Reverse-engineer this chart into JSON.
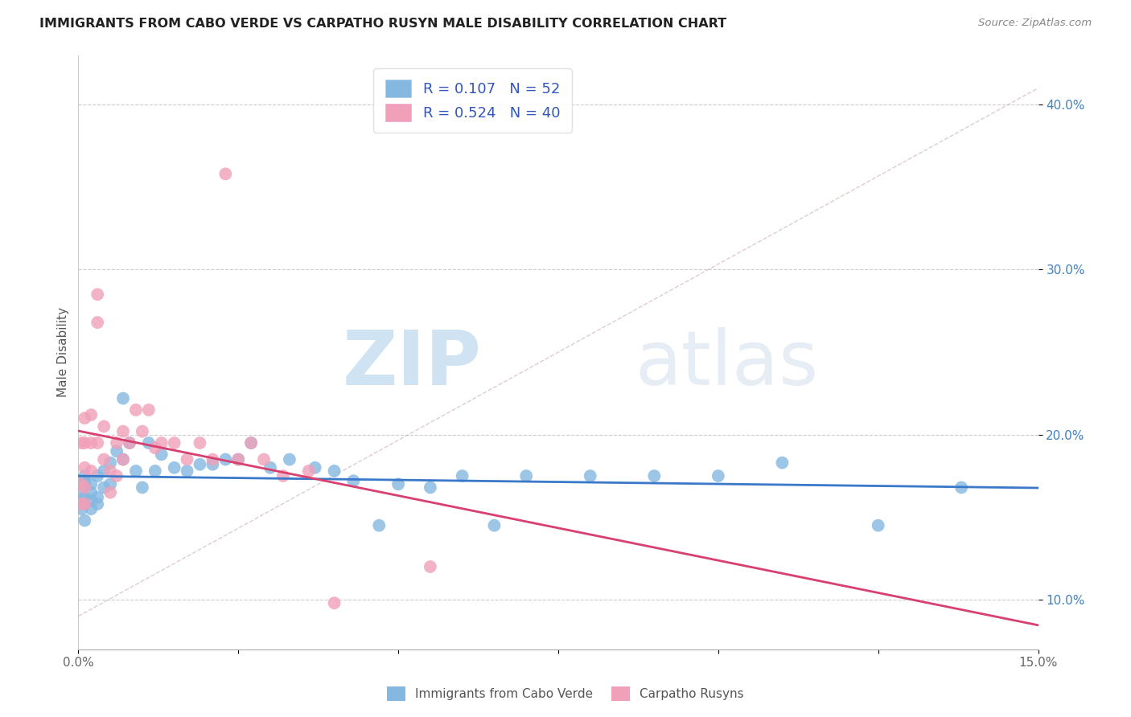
{
  "title": "IMMIGRANTS FROM CABO VERDE VS CARPATHO RUSYN MALE DISABILITY CORRELATION CHART",
  "source": "Source: ZipAtlas.com",
  "ylabel": "Male Disability",
  "xlim": [
    0.0,
    0.15
  ],
  "ylim": [
    0.07,
    0.43
  ],
  "xticks": [
    0.0,
    0.025,
    0.05,
    0.075,
    0.1,
    0.125,
    0.15
  ],
  "xticklabels": [
    "0.0%",
    "",
    "",
    "",
    "",
    "",
    "15.0%"
  ],
  "yticks": [
    0.1,
    0.2,
    0.3,
    0.4
  ],
  "yticklabels": [
    "10.0%",
    "20.0%",
    "30.0%",
    "40.0%"
  ],
  "blue_R": 0.107,
  "blue_N": 52,
  "pink_R": 0.524,
  "pink_N": 40,
  "blue_color": "#85b8e0",
  "pink_color": "#f0a0b8",
  "blue_line_color": "#3a78c9",
  "pink_line_color": "#d84070",
  "ref_line_color": "#ccaaaa",
  "watermark_zip": "ZIP",
  "watermark_atlas": "atlas",
  "legend_label_blue": "Immigrants from Cabo Verde",
  "legend_label_pink": "Carpatho Rusyns",
  "blue_dots_x": [
    0.0005,
    0.0005,
    0.001,
    0.001,
    0.001,
    0.001,
    0.001,
    0.001,
    0.002,
    0.002,
    0.002,
    0.002,
    0.003,
    0.003,
    0.003,
    0.004,
    0.004,
    0.005,
    0.005,
    0.006,
    0.007,
    0.007,
    0.008,
    0.009,
    0.01,
    0.011,
    0.012,
    0.013,
    0.015,
    0.017,
    0.019,
    0.021,
    0.023,
    0.025,
    0.027,
    0.03,
    0.033,
    0.037,
    0.04,
    0.043,
    0.047,
    0.05,
    0.055,
    0.06,
    0.065,
    0.07,
    0.08,
    0.09,
    0.1,
    0.11,
    0.125,
    0.138
  ],
  "blue_dots_y": [
    0.165,
    0.155,
    0.172,
    0.162,
    0.158,
    0.148,
    0.17,
    0.175,
    0.165,
    0.16,
    0.155,
    0.17,
    0.175,
    0.162,
    0.158,
    0.178,
    0.168,
    0.183,
    0.17,
    0.19,
    0.222,
    0.185,
    0.195,
    0.178,
    0.168,
    0.195,
    0.178,
    0.188,
    0.18,
    0.178,
    0.182,
    0.182,
    0.185,
    0.185,
    0.195,
    0.18,
    0.185,
    0.18,
    0.178,
    0.172,
    0.145,
    0.17,
    0.168,
    0.175,
    0.145,
    0.175,
    0.175,
    0.175,
    0.175,
    0.183,
    0.145,
    0.168
  ],
  "pink_dots_x": [
    0.0005,
    0.0005,
    0.0005,
    0.001,
    0.001,
    0.001,
    0.001,
    0.001,
    0.002,
    0.002,
    0.002,
    0.003,
    0.003,
    0.003,
    0.004,
    0.004,
    0.005,
    0.005,
    0.006,
    0.006,
    0.007,
    0.007,
    0.008,
    0.009,
    0.01,
    0.011,
    0.012,
    0.013,
    0.015,
    0.017,
    0.019,
    0.021,
    0.023,
    0.025,
    0.027,
    0.029,
    0.032,
    0.036,
    0.04,
    0.055
  ],
  "pink_dots_y": [
    0.195,
    0.17,
    0.158,
    0.21,
    0.195,
    0.18,
    0.168,
    0.158,
    0.212,
    0.195,
    0.178,
    0.285,
    0.268,
    0.195,
    0.205,
    0.185,
    0.178,
    0.165,
    0.195,
    0.175,
    0.202,
    0.185,
    0.195,
    0.215,
    0.202,
    0.215,
    0.192,
    0.195,
    0.195,
    0.185,
    0.195,
    0.185,
    0.358,
    0.185,
    0.195,
    0.185,
    0.175,
    0.178,
    0.098,
    0.12
  ]
}
